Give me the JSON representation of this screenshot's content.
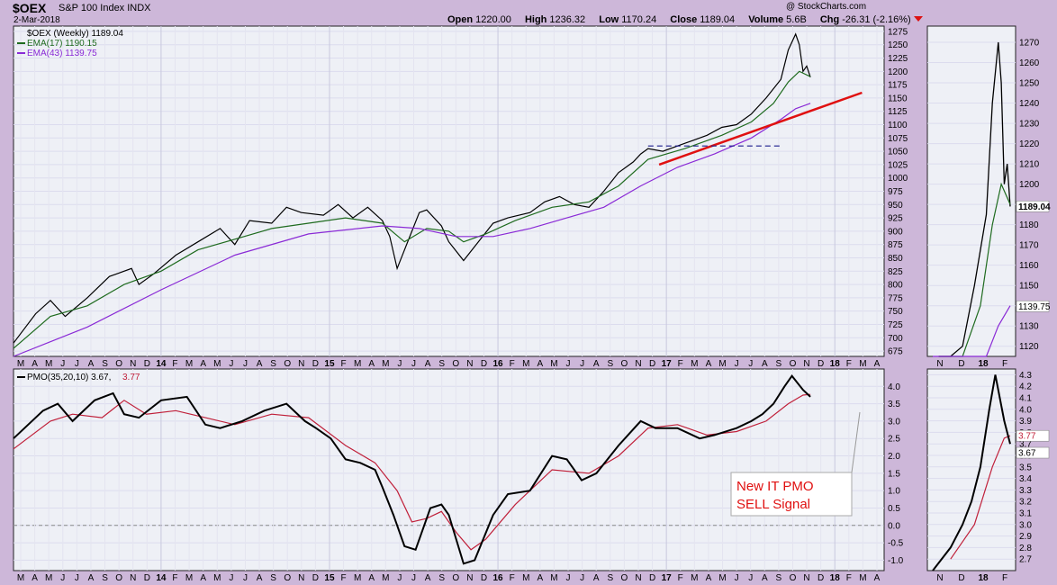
{
  "header": {
    "symbol": "$OEX",
    "name": "S&P 100 Index  INDX",
    "date": "2-Mar-2018",
    "watermark": "@ StockCharts.com",
    "open_label": "Open",
    "open": "1220.00",
    "high_label": "High",
    "high": "1236.32",
    "low_label": "Low",
    "low": "1170.24",
    "close_label": "Close",
    "close": "1189.04",
    "volume_label": "Volume",
    "volume": "5.6B",
    "chg_label": "Chg",
    "chg": "-26.31 (-2.16%)"
  },
  "legend": {
    "price": "$OEX (Weekly) 1189.04",
    "ema17": "EMA(17) 1190.15",
    "ema43": "EMA(43) 1139.75",
    "pmo_label": "PMO(35,20,10) 3.67, ",
    "pmo_signal": "3.77"
  },
  "annotation": {
    "line1": "New IT PMO",
    "line2": "SELL Signal"
  },
  "colors": {
    "background": "#cdb7d9",
    "panel": "#eef0f6",
    "price_bars": "#000000",
    "ema17": "#1f6b1f",
    "ema43": "#8a2ad6",
    "pmo": "#000000",
    "pmo_signal": "#c0203a",
    "trendline": "#e01010",
    "annotation_text": "#e01010"
  },
  "x_axis": {
    "main_ticks": [
      "M",
      "A",
      "M",
      "J",
      "J",
      "A",
      "S",
      "O",
      "N",
      "D",
      "14",
      "F",
      "M",
      "A",
      "M",
      "J",
      "J",
      "A",
      "S",
      "O",
      "N",
      "D",
      "15",
      "F",
      "M",
      "A",
      "M",
      "J",
      "J",
      "A",
      "S",
      "O",
      "N",
      "D",
      "16",
      "F",
      "M",
      "A",
      "M",
      "J",
      "J",
      "A",
      "S",
      "O",
      "N",
      "D",
      "17",
      "F",
      "M",
      "A",
      "M",
      "J",
      "J",
      "A",
      "S",
      "O",
      "N",
      "D",
      "18",
      "F",
      "M",
      "A"
    ],
    "side_ticks": [
      "N",
      "D",
      "18",
      "F"
    ]
  },
  "price_axis_ticks": [
    "1275",
    "1250",
    "1225",
    "1200",
    "1175",
    "1150",
    "1125",
    "1100",
    "1075",
    "1050",
    "1025",
    "1000",
    "975",
    "950",
    "925",
    "900",
    "875",
    "850",
    "825",
    "800",
    "775",
    "750",
    "725",
    "700",
    "675"
  ],
  "pmo_axis_ticks": [
    "4.0",
    "3.5",
    "3.0",
    "2.5",
    "2.0",
    "1.5",
    "1.0",
    "0.5",
    "0.0",
    "-0.5",
    "-1.0"
  ],
  "side_price_ticks": [
    "1270",
    "1260",
    "1250",
    "1240",
    "1230",
    "1220",
    "1210",
    "1200",
    "1190",
    "1180",
    "1170",
    "1160",
    "1150",
    "1140",
    "1130",
    "1120"
  ],
  "side_pmo_ticks": [
    "4.3",
    "4.2",
    "4.1",
    "4.0",
    "3.9",
    "3.8",
    "3.7",
    "3.6",
    "3.5",
    "3.4",
    "3.3",
    "3.2",
    "3.1",
    "3.0",
    "2.9",
    "2.8",
    "2.7"
  ],
  "side_markers": {
    "close": "1189.04",
    "ema43": "1139.75",
    "pmo_signal": "3.77",
    "pmo": "3.67"
  },
  "chart_data": [
    {
      "type": "line",
      "title": "$OEX (Weekly) 1189.04",
      "x_unit": "weeks (Mar 2013 - Mar 2018)",
      "ylim": [
        665,
        1285
      ],
      "series": [
        {
          "name": "$OEX (Weekly)",
          "points": [
            [
              0,
              690
            ],
            [
              6,
              745
            ],
            [
              10,
              770
            ],
            [
              14,
              740
            ],
            [
              20,
              775
            ],
            [
              26,
              815
            ],
            [
              32,
              830
            ],
            [
              34,
              800
            ],
            [
              38,
              820
            ],
            [
              44,
              855
            ],
            [
              50,
              880
            ],
            [
              56,
              905
            ],
            [
              60,
              875
            ],
            [
              64,
              920
            ],
            [
              70,
              915
            ],
            [
              74,
              945
            ],
            [
              78,
              935
            ],
            [
              84,
              930
            ],
            [
              88,
              950
            ],
            [
              92,
              925
            ],
            [
              96,
              945
            ],
            [
              100,
              920
            ],
            [
              102,
              890
            ],
            [
              104,
              830
            ],
            [
              108,
              900
            ],
            [
              110,
              935
            ],
            [
              112,
              940
            ],
            [
              116,
              910
            ],
            [
              118,
              880
            ],
            [
              122,
              845
            ],
            [
              126,
              880
            ],
            [
              130,
              915
            ],
            [
              134,
              925
            ],
            [
              140,
              935
            ],
            [
              144,
              955
            ],
            [
              148,
              965
            ],
            [
              152,
              950
            ],
            [
              156,
              945
            ],
            [
              160,
              975
            ],
            [
              164,
              1010
            ],
            [
              168,
              1030
            ],
            [
              170,
              1045
            ],
            [
              172,
              1055
            ],
            [
              176,
              1050
            ],
            [
              180,
              1060
            ],
            [
              184,
              1070
            ],
            [
              188,
              1080
            ],
            [
              192,
              1095
            ],
            [
              196,
              1100
            ],
            [
              200,
              1120
            ],
            [
              204,
              1150
            ],
            [
              208,
              1185
            ],
            [
              210,
              1240
            ],
            [
              212,
              1270
            ],
            [
              213,
              1250
            ],
            [
              214,
              1200
            ],
            [
              215,
              1210
            ],
            [
              216,
              1189
            ]
          ]
        },
        {
          "name": "EMA(17)",
          "points": [
            [
              0,
              680
            ],
            [
              10,
              740
            ],
            [
              20,
              760
            ],
            [
              30,
              800
            ],
            [
              40,
              825
            ],
            [
              50,
              865
            ],
            [
              60,
              885
            ],
            [
              70,
              905
            ],
            [
              80,
              915
            ],
            [
              90,
              925
            ],
            [
              100,
              915
            ],
            [
              106,
              880
            ],
            [
              112,
              905
            ],
            [
              118,
              900
            ],
            [
              122,
              880
            ],
            [
              128,
              895
            ],
            [
              136,
              920
            ],
            [
              146,
              945
            ],
            [
              156,
              955
            ],
            [
              164,
              985
            ],
            [
              172,
              1035
            ],
            [
              182,
              1055
            ],
            [
              192,
              1080
            ],
            [
              200,
              1105
            ],
            [
              206,
              1140
            ],
            [
              210,
              1180
            ],
            [
              213,
              1200
            ],
            [
              216,
              1190
            ]
          ]
        },
        {
          "name": "EMA(43)",
          "points": [
            [
              0,
              665
            ],
            [
              20,
              720
            ],
            [
              40,
              790
            ],
            [
              60,
              855
            ],
            [
              80,
              895
            ],
            [
              100,
              910
            ],
            [
              110,
              905
            ],
            [
              120,
              890
            ],
            [
              130,
              890
            ],
            [
              140,
              905
            ],
            [
              150,
              925
            ],
            [
              160,
              945
            ],
            [
              170,
              985
            ],
            [
              180,
              1020
            ],
            [
              190,
              1045
            ],
            [
              200,
              1075
            ],
            [
              208,
              1110
            ],
            [
              212,
              1130
            ],
            [
              216,
              1140
            ]
          ]
        },
        {
          "name": "Trendline",
          "points": [
            [
              175,
              1025
            ],
            [
              230,
              1160
            ]
          ]
        },
        {
          "name": "Resistance",
          "points": [
            [
              172,
              1060
            ],
            [
              208,
              1060
            ]
          ]
        }
      ]
    },
    {
      "type": "line",
      "title": "PMO(35,20,10) 3.67, 3.77",
      "ylim": [
        -1.3,
        4.5
      ],
      "series": [
        {
          "name": "PMO",
          "points": [
            [
              0,
              2.5
            ],
            [
              8,
              3.3
            ],
            [
              12,
              3.5
            ],
            [
              16,
              3.0
            ],
            [
              22,
              3.6
            ],
            [
              27,
              3.8
            ],
            [
              30,
              3.2
            ],
            [
              34,
              3.1
            ],
            [
              40,
              3.6
            ],
            [
              47,
              3.7
            ],
            [
              52,
              2.9
            ],
            [
              56,
              2.8
            ],
            [
              62,
              3.0
            ],
            [
              68,
              3.3
            ],
            [
              74,
              3.5
            ],
            [
              79,
              3.0
            ],
            [
              82,
              2.8
            ],
            [
              86,
              2.5
            ],
            [
              90,
              1.9
            ],
            [
              94,
              1.8
            ],
            [
              98,
              1.6
            ],
            [
              100,
              1.1
            ],
            [
              103,
              0.3
            ],
            [
              106,
              -0.6
            ],
            [
              109,
              -0.7
            ],
            [
              113,
              0.5
            ],
            [
              116,
              0.6
            ],
            [
              118,
              0.3
            ],
            [
              122,
              -1.1
            ],
            [
              125,
              -1.0
            ],
            [
              130,
              0.3
            ],
            [
              134,
              0.9
            ],
            [
              140,
              1.0
            ],
            [
              146,
              2.0
            ],
            [
              150,
              1.9
            ],
            [
              154,
              1.3
            ],
            [
              158,
              1.5
            ],
            [
              164,
              2.3
            ],
            [
              170,
              3.0
            ],
            [
              174,
              2.8
            ],
            [
              180,
              2.8
            ],
            [
              186,
              2.5
            ],
            [
              190,
              2.6
            ],
            [
              196,
              2.8
            ],
            [
              200,
              3.0
            ],
            [
              203,
              3.2
            ],
            [
              206,
              3.5
            ],
            [
              209,
              4.0
            ],
            [
              211,
              4.3
            ],
            [
              214,
              3.9
            ],
            [
              216,
              3.7
            ]
          ]
        },
        {
          "name": "Signal",
          "points": [
            [
              0,
              2.2
            ],
            [
              10,
              3.0
            ],
            [
              16,
              3.2
            ],
            [
              24,
              3.1
            ],
            [
              30,
              3.6
            ],
            [
              36,
              3.2
            ],
            [
              44,
              3.3
            ],
            [
              52,
              3.1
            ],
            [
              60,
              2.9
            ],
            [
              70,
              3.2
            ],
            [
              80,
              3.1
            ],
            [
              90,
              2.3
            ],
            [
              98,
              1.8
            ],
            [
              104,
              1.0
            ],
            [
              108,
              0.1
            ],
            [
              112,
              0.2
            ],
            [
              116,
              0.4
            ],
            [
              120,
              -0.2
            ],
            [
              124,
              -0.7
            ],
            [
              128,
              -0.4
            ],
            [
              136,
              0.6
            ],
            [
              146,
              1.6
            ],
            [
              156,
              1.5
            ],
            [
              164,
              2.0
            ],
            [
              172,
              2.8
            ],
            [
              180,
              2.9
            ],
            [
              188,
              2.6
            ],
            [
              196,
              2.7
            ],
            [
              204,
              3.0
            ],
            [
              210,
              3.5
            ],
            [
              214,
              3.75
            ],
            [
              216,
              3.77
            ]
          ]
        }
      ]
    }
  ]
}
